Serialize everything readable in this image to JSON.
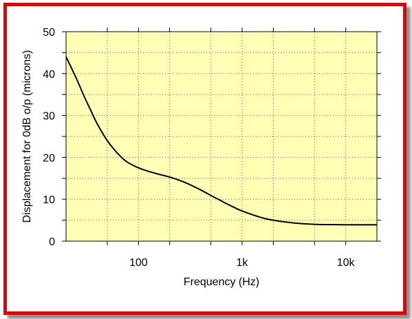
{
  "chart_data": {
    "type": "line",
    "xlabel": "Frequency (Hz)",
    "ylabel": "Displacement for 0dB o/p  (microns)",
    "x_scale": "log",
    "xlim": [
      20,
      20000
    ],
    "ylim": [
      0,
      50
    ],
    "x_ticks": [
      {
        "value": 100,
        "label": "100"
      },
      {
        "value": 1000,
        "label": "1k"
      },
      {
        "value": 10000,
        "label": "10k"
      }
    ],
    "y_ticks": [
      {
        "value": 0,
        "label": "0"
      },
      {
        "value": 10,
        "label": "10"
      },
      {
        "value": 20,
        "label": "20"
      },
      {
        "value": 30,
        "label": "30"
      },
      {
        "value": 40,
        "label": "40"
      },
      {
        "value": 50,
        "label": "50"
      }
    ],
    "grid": true,
    "series": [
      {
        "x": [
          20,
          25,
          30,
          35,
          40,
          50,
          60,
          70,
          80,
          100,
          120,
          150,
          200,
          250,
          300,
          400,
          500,
          600,
          700,
          800,
          1000,
          1500,
          2000,
          3000,
          5000,
          7000,
          10000,
          15000,
          20000
        ],
        "values": [
          44,
          39,
          34.5,
          31,
          28,
          24,
          21.5,
          19.8,
          18.7,
          17.5,
          16.8,
          16.1,
          15.3,
          14.5,
          13.7,
          12.2,
          10.9,
          9.9,
          9.0,
          8.3,
          7.2,
          5.7,
          5.0,
          4.4,
          4.0,
          3.95,
          3.9,
          3.9,
          3.9
        ]
      }
    ],
    "colors": {
      "plot_background": "#ffffb5",
      "line": "#000000",
      "grid": "#555555",
      "frame_border": "#d20c0c"
    }
  }
}
